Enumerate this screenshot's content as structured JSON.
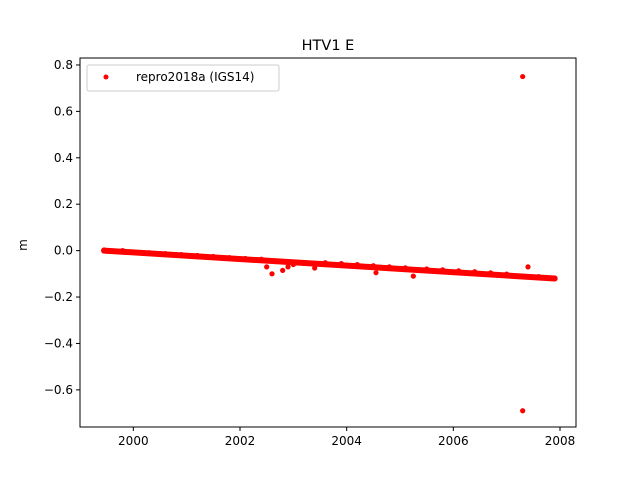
{
  "chart_data": {
    "type": "scatter",
    "title": "HTV1 E",
    "xlabel": "",
    "ylabel": "m",
    "xlim": [
      1999.0,
      2008.3
    ],
    "ylim": [
      -0.76,
      0.83
    ],
    "xticks": [
      2000,
      2002,
      2004,
      2006,
      2008
    ],
    "xtick_labels": [
      "2000",
      "2002",
      "2004",
      "2006",
      "2008"
    ],
    "yticks": [
      -0.6,
      -0.4,
      -0.2,
      0.0,
      0.2,
      0.4,
      0.6,
      0.8
    ],
    "ytick_labels": [
      "−0.6",
      "−0.4",
      "−0.2",
      "0.0",
      "0.2",
      "0.4",
      "0.6",
      "0.8"
    ],
    "grid": false,
    "legend_position": "top-left",
    "series": [
      {
        "name": "repro2018a (IGS14)",
        "color": "#ff0000",
        "marker": "circle",
        "trend": {
          "x_start": 1999.45,
          "y_start": 0.0,
          "x_end": 2007.9,
          "y_end": -0.12
        },
        "points": [
          {
            "x": 1999.45,
            "y": 0.003
          },
          {
            "x": 1999.6,
            "y": -0.002
          },
          {
            "x": 1999.8,
            "y": 0.0
          },
          {
            "x": 2000.0,
            "y": -0.006
          },
          {
            "x": 2000.3,
            "y": -0.009
          },
          {
            "x": 2000.6,
            "y": -0.013
          },
          {
            "x": 2000.9,
            "y": -0.017
          },
          {
            "x": 2001.2,
            "y": -0.021
          },
          {
            "x": 2001.5,
            "y": -0.025
          },
          {
            "x": 2001.8,
            "y": -0.03
          },
          {
            "x": 2002.1,
            "y": -0.034
          },
          {
            "x": 2002.4,
            "y": -0.037
          },
          {
            "x": 2002.5,
            "y": -0.07
          },
          {
            "x": 2002.6,
            "y": -0.1
          },
          {
            "x": 2002.8,
            "y": -0.085
          },
          {
            "x": 2002.9,
            "y": -0.07
          },
          {
            "x": 2003.0,
            "y": -0.06
          },
          {
            "x": 2003.2,
            "y": -0.055
          },
          {
            "x": 2003.4,
            "y": -0.075
          },
          {
            "x": 2003.6,
            "y": -0.052
          },
          {
            "x": 2003.9,
            "y": -0.056
          },
          {
            "x": 2004.2,
            "y": -0.06
          },
          {
            "x": 2004.5,
            "y": -0.065
          },
          {
            "x": 2004.55,
            "y": -0.095
          },
          {
            "x": 2004.8,
            "y": -0.07
          },
          {
            "x": 2005.1,
            "y": -0.074
          },
          {
            "x": 2005.25,
            "y": -0.11
          },
          {
            "x": 2005.5,
            "y": -0.079
          },
          {
            "x": 2005.8,
            "y": -0.083
          },
          {
            "x": 2006.1,
            "y": -0.087
          },
          {
            "x": 2006.4,
            "y": -0.091
          },
          {
            "x": 2006.7,
            "y": -0.096
          },
          {
            "x": 2007.0,
            "y": -0.101
          },
          {
            "x": 2007.3,
            "y": 0.75
          },
          {
            "x": 2007.3,
            "y": -0.69
          },
          {
            "x": 2007.4,
            "y": -0.07
          },
          {
            "x": 2007.6,
            "y": -0.112
          },
          {
            "x": 2007.9,
            "y": -0.118
          }
        ]
      }
    ]
  }
}
